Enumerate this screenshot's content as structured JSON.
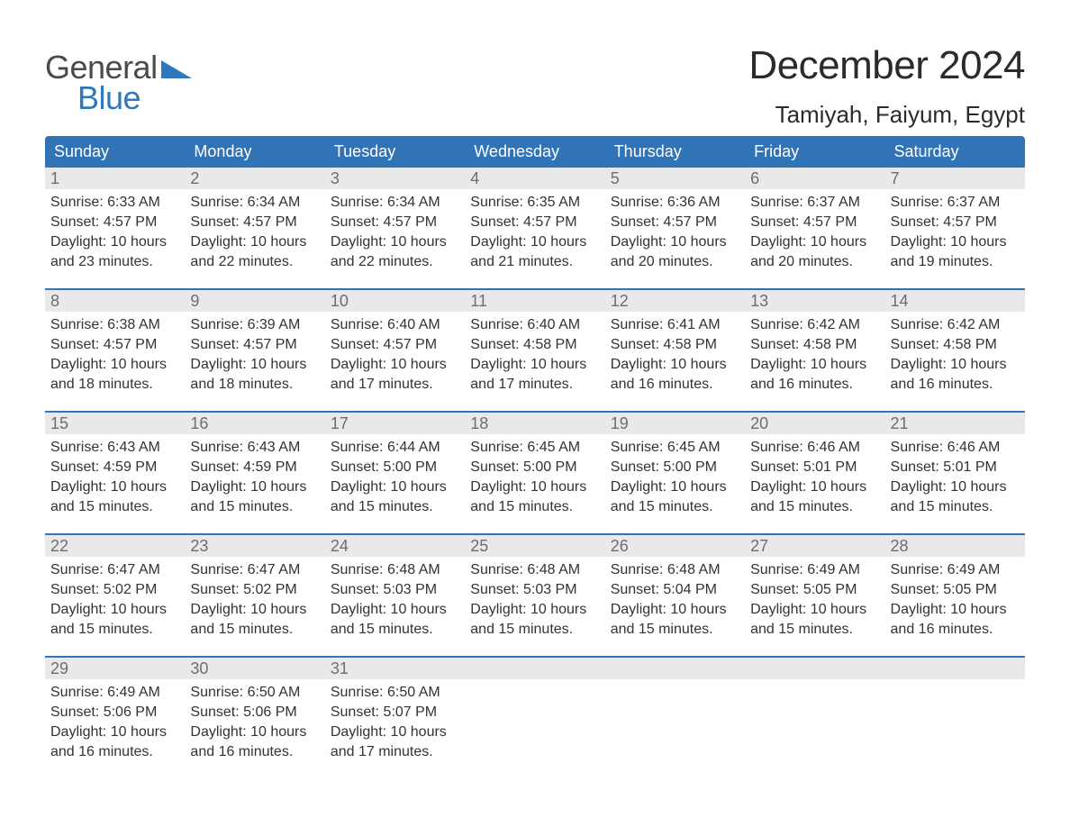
{
  "brand": {
    "word1": "General",
    "word2": "Blue",
    "word1_color": "#4a4a4a",
    "word2_color": "#2f78bd",
    "triangle_color": "#2f78bd"
  },
  "title": {
    "month": "December 2024",
    "location": "Tamiyah, Faiyum, Egypt"
  },
  "colors": {
    "header_bg": "#3073b6",
    "header_text": "#ffffff",
    "daynum_bg": "#e9e9e9",
    "daynum_text": "#6e6e6e",
    "body_text": "#333333",
    "row_border": "#3073b6",
    "page_bg": "#ffffff"
  },
  "fonts": {
    "month_title_size_pt": 33,
    "location_size_pt": 20,
    "header_size_pt": 14,
    "daynum_size_pt": 14,
    "body_size_pt": 12
  },
  "daysOfWeek": [
    "Sunday",
    "Monday",
    "Tuesday",
    "Wednesday",
    "Thursday",
    "Friday",
    "Saturday"
  ],
  "weeks": [
    [
      {
        "n": "1",
        "sr": "6:33 AM",
        "ss": "4:57 PM",
        "dl": "10 hours and 23 minutes."
      },
      {
        "n": "2",
        "sr": "6:34 AM",
        "ss": "4:57 PM",
        "dl": "10 hours and 22 minutes."
      },
      {
        "n": "3",
        "sr": "6:34 AM",
        "ss": "4:57 PM",
        "dl": "10 hours and 22 minutes."
      },
      {
        "n": "4",
        "sr": "6:35 AM",
        "ss": "4:57 PM",
        "dl": "10 hours and 21 minutes."
      },
      {
        "n": "5",
        "sr": "6:36 AM",
        "ss": "4:57 PM",
        "dl": "10 hours and 20 minutes."
      },
      {
        "n": "6",
        "sr": "6:37 AM",
        "ss": "4:57 PM",
        "dl": "10 hours and 20 minutes."
      },
      {
        "n": "7",
        "sr": "6:37 AM",
        "ss": "4:57 PM",
        "dl": "10 hours and 19 minutes."
      }
    ],
    [
      {
        "n": "8",
        "sr": "6:38 AM",
        "ss": "4:57 PM",
        "dl": "10 hours and 18 minutes."
      },
      {
        "n": "9",
        "sr": "6:39 AM",
        "ss": "4:57 PM",
        "dl": "10 hours and 18 minutes."
      },
      {
        "n": "10",
        "sr": "6:40 AM",
        "ss": "4:57 PM",
        "dl": "10 hours and 17 minutes."
      },
      {
        "n": "11",
        "sr": "6:40 AM",
        "ss": "4:58 PM",
        "dl": "10 hours and 17 minutes."
      },
      {
        "n": "12",
        "sr": "6:41 AM",
        "ss": "4:58 PM",
        "dl": "10 hours and 16 minutes."
      },
      {
        "n": "13",
        "sr": "6:42 AM",
        "ss": "4:58 PM",
        "dl": "10 hours and 16 minutes."
      },
      {
        "n": "14",
        "sr": "6:42 AM",
        "ss": "4:58 PM",
        "dl": "10 hours and 16 minutes."
      }
    ],
    [
      {
        "n": "15",
        "sr": "6:43 AM",
        "ss": "4:59 PM",
        "dl": "10 hours and 15 minutes."
      },
      {
        "n": "16",
        "sr": "6:43 AM",
        "ss": "4:59 PM",
        "dl": "10 hours and 15 minutes."
      },
      {
        "n": "17",
        "sr": "6:44 AM",
        "ss": "5:00 PM",
        "dl": "10 hours and 15 minutes."
      },
      {
        "n": "18",
        "sr": "6:45 AM",
        "ss": "5:00 PM",
        "dl": "10 hours and 15 minutes."
      },
      {
        "n": "19",
        "sr": "6:45 AM",
        "ss": "5:00 PM",
        "dl": "10 hours and 15 minutes."
      },
      {
        "n": "20",
        "sr": "6:46 AM",
        "ss": "5:01 PM",
        "dl": "10 hours and 15 minutes."
      },
      {
        "n": "21",
        "sr": "6:46 AM",
        "ss": "5:01 PM",
        "dl": "10 hours and 15 minutes."
      }
    ],
    [
      {
        "n": "22",
        "sr": "6:47 AM",
        "ss": "5:02 PM",
        "dl": "10 hours and 15 minutes."
      },
      {
        "n": "23",
        "sr": "6:47 AM",
        "ss": "5:02 PM",
        "dl": "10 hours and 15 minutes."
      },
      {
        "n": "24",
        "sr": "6:48 AM",
        "ss": "5:03 PM",
        "dl": "10 hours and 15 minutes."
      },
      {
        "n": "25",
        "sr": "6:48 AM",
        "ss": "5:03 PM",
        "dl": "10 hours and 15 minutes."
      },
      {
        "n": "26",
        "sr": "6:48 AM",
        "ss": "5:04 PM",
        "dl": "10 hours and 15 minutes."
      },
      {
        "n": "27",
        "sr": "6:49 AM",
        "ss": "5:05 PM",
        "dl": "10 hours and 15 minutes."
      },
      {
        "n": "28",
        "sr": "6:49 AM",
        "ss": "5:05 PM",
        "dl": "10 hours and 16 minutes."
      }
    ],
    [
      {
        "n": "29",
        "sr": "6:49 AM",
        "ss": "5:06 PM",
        "dl": "10 hours and 16 minutes."
      },
      {
        "n": "30",
        "sr": "6:50 AM",
        "ss": "5:06 PM",
        "dl": "10 hours and 16 minutes."
      },
      {
        "n": "31",
        "sr": "6:50 AM",
        "ss": "5:07 PM",
        "dl": "10 hours and 17 minutes."
      },
      null,
      null,
      null,
      null
    ]
  ],
  "labels": {
    "sunrise_prefix": "Sunrise: ",
    "sunset_prefix": "Sunset: ",
    "daylight_prefix": "Daylight: "
  }
}
